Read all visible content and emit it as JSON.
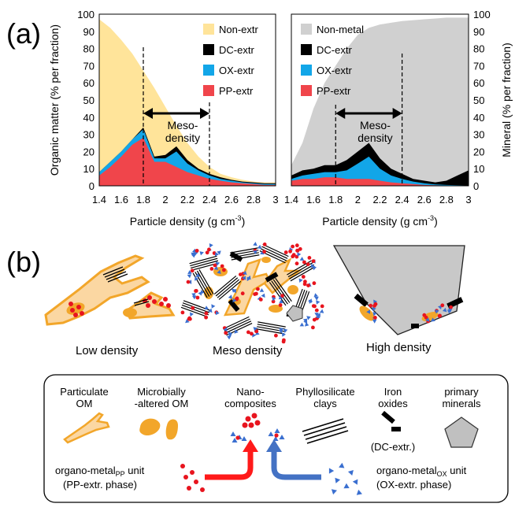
{
  "panel_a_label": "(a)",
  "panel_b_label": "(b)",
  "chart_data": [
    {
      "type": "area",
      "x": [
        1.4,
        1.5,
        1.6,
        1.7,
        1.8,
        1.9,
        2.0,
        2.1,
        2.2,
        2.3,
        2.4,
        2.5,
        2.6,
        2.7,
        2.8,
        2.9,
        3.0
      ],
      "series": [
        {
          "name": "PP-extr",
          "values": [
            6,
            11,
            17,
            24,
            28,
            14,
            14,
            11,
            8,
            6,
            4,
            3,
            2,
            1.5,
            1,
            0.5,
            0.5
          ]
        },
        {
          "name": "OX-extr",
          "values": [
            8,
            14,
            20,
            27,
            33,
            16,
            16,
            20,
            13,
            9,
            6,
            4,
            3,
            2,
            1.5,
            1,
            1
          ]
        },
        {
          "name": "DC-extr",
          "values": [
            8,
            14,
            20,
            27,
            34,
            17,
            18,
            23,
            15,
            10,
            7,
            5,
            3.5,
            2.5,
            2,
            1.5,
            1.5
          ]
        },
        {
          "name": "Non-extr",
          "values": [
            97,
            92,
            85,
            77,
            67,
            57,
            46,
            35,
            25,
            17,
            11,
            7,
            5,
            3.5,
            2.5,
            2,
            2
          ]
        }
      ],
      "legend": [
        "Non-extr",
        "DC-extr",
        "OX-extr",
        "PP-extr"
      ],
      "ylabel": "Organic matter (% per fraction)",
      "xlabel": "Particle density (g cm-3)",
      "xlabel_main": "Particle density (g cm",
      "xlabel_sup": "-3",
      "xlabel_end": ")",
      "xticks": [
        "1.4",
        "1.6",
        "1.8",
        "2",
        "2.2",
        "2.4",
        "2.6",
        "2.8",
        "3"
      ],
      "yticks": [
        "0",
        "10",
        "20",
        "30",
        "40",
        "50",
        "60",
        "70",
        "80",
        "90",
        "100"
      ],
      "xlim": [
        1.4,
        3.0
      ],
      "ylim": [
        0,
        100
      ],
      "annotation": [
        "Meso-",
        "density"
      ],
      "range": [
        1.8,
        2.4
      ]
    },
    {
      "type": "area",
      "x": [
        1.4,
        1.5,
        1.6,
        1.7,
        1.8,
        1.9,
        2.0,
        2.1,
        2.2,
        2.3,
        2.4,
        2.5,
        2.6,
        2.7,
        2.8,
        2.9,
        3.0
      ],
      "series": [
        {
          "name": "PP-extr",
          "values": [
            3,
            4,
            4,
            5,
            5,
            4,
            4,
            4,
            3,
            2,
            1.5,
            1,
            0.5,
            0.3,
            0.2,
            0.1,
            0.1
          ]
        },
        {
          "name": "OX-extr",
          "values": [
            4,
            6,
            7,
            8,
            8,
            9,
            13,
            17,
            10,
            6,
            4,
            2.5,
            1.5,
            0.8,
            0.5,
            0.3,
            0.2
          ]
        },
        {
          "name": "DC-extr",
          "values": [
            6,
            9,
            10,
            12,
            12,
            15,
            20,
            25,
            16,
            10,
            7,
            4,
            3,
            2,
            3,
            6,
            9
          ]
        },
        {
          "name": "Non-metal",
          "values": [
            12,
            25,
            45,
            60,
            70,
            80,
            88,
            92,
            94,
            95,
            96,
            96.5,
            97,
            97.5,
            98,
            98,
            98
          ]
        }
      ],
      "legend": [
        "Non-metal",
        "DC-extr",
        "OX-extr",
        "PP-extr"
      ],
      "ylabel": "Mineral (% per fraction)",
      "xlabel": "Particle density (g cm-3)",
      "xlabel_main": "Particle density (g cm",
      "xlabel_sup": "-3",
      "xlabel_end": ")",
      "xticks": [
        "1.4",
        "1.6",
        "1.8",
        "2",
        "2.2",
        "2.4",
        "2.6",
        "2.8",
        "3"
      ],
      "yticks": [
        "0",
        "10",
        "20",
        "30",
        "40",
        "50",
        "60",
        "70",
        "80",
        "90",
        "100"
      ],
      "xlim": [
        1.4,
        3.0
      ],
      "ylim": [
        0,
        100
      ],
      "annotation": [
        "Meso-",
        "density"
      ],
      "range": [
        1.8,
        2.4
      ]
    }
  ],
  "density_labels": {
    "low": "Low density",
    "meso": "Meso density",
    "high": "High density"
  },
  "legend_box": {
    "particulate": [
      "Particulate",
      "OM"
    ],
    "microbial": [
      "Microbially",
      "-altered OM"
    ],
    "nano": [
      "Nano-",
      "composites"
    ],
    "phyllo": [
      "Phyllosilicate",
      "clays"
    ],
    "iron": [
      "Iron",
      "oxides"
    ],
    "iron_note": "(DC-extr.)",
    "primary": [
      "primary",
      "minerals"
    ],
    "pp_unit_main": "organo-metal",
    "pp_unit_sub": "PP",
    "pp_unit_end": " unit",
    "pp_phase": "(PP-extr. phase)",
    "ox_unit_main": "organo-metal",
    "ox_unit_sub": "OX",
    "ox_unit_end": " unit",
    "ox_phase": "(OX-extr. phase)"
  },
  "colors": {
    "nonextr": "#ffe49a",
    "nonmetal": "#d0d0d0",
    "dc": "#000000",
    "ox": "#12a6e8",
    "pp": "#f0454b",
    "om": "#f2a62a",
    "om_fill": "#fbd7a2",
    "mineral": "#c8c8c8",
    "tri": "#3a6fd0",
    "arrow_red": "#ff1a1a",
    "arrow_blue": "#4472c4"
  }
}
